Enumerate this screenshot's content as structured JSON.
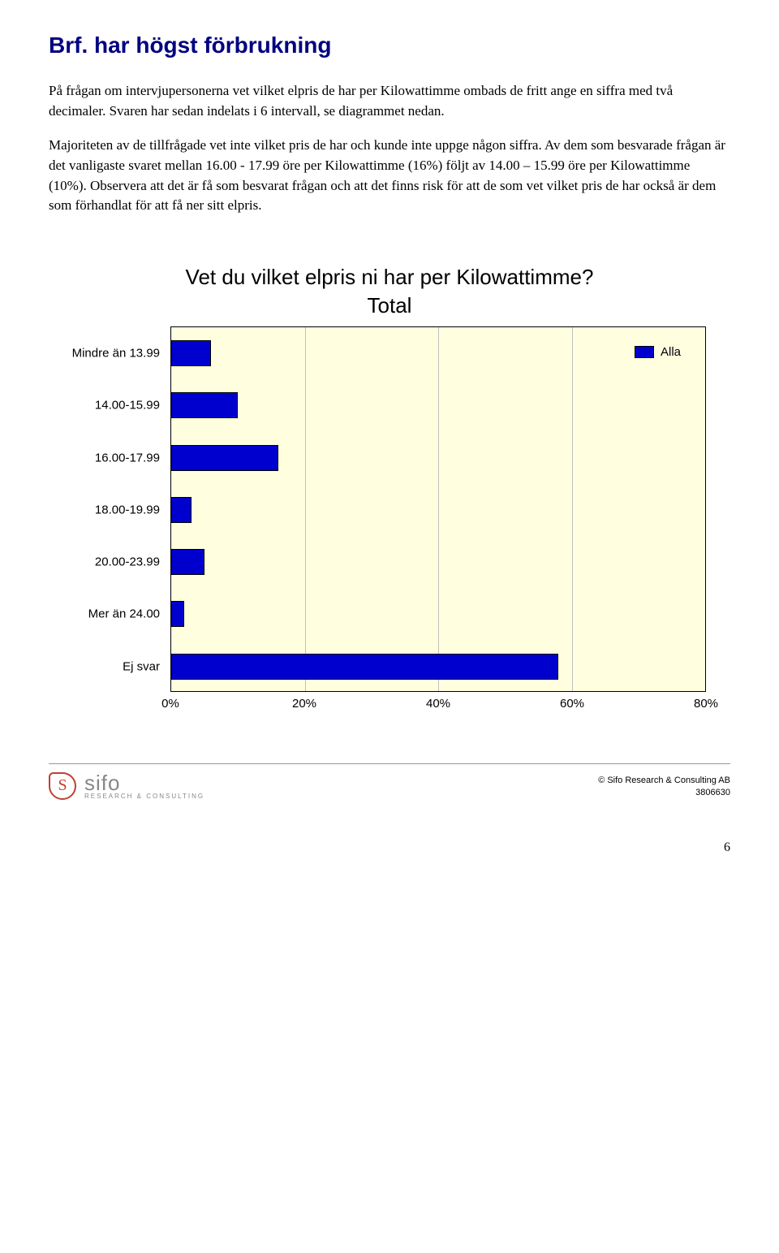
{
  "title": "Brf. har högst förbrukning",
  "paragraphs": [
    "På frågan om intervjupersonerna vet vilket elpris de har per Kilowattimme ombads de fritt ange en siffra med två decimaler. Svaren har sedan indelats i 6 intervall, se diagrammet nedan.",
    "Majoriteten av de tillfrågade vet inte vilket pris de har och kunde inte uppge någon siffra. Av dem som besvarade frågan är det vanligaste svaret mellan 16.00 - 17.99 öre per Kilowattimme (16%) följt av 14.00 – 15.99 öre per Kilowattimme (10%). Observera att det är få som besvarat frågan och att det finns risk för att de som vet vilket pris de har också är dem som förhandlat för att få ner sitt elpris."
  ],
  "chart": {
    "type": "bar-horizontal",
    "title": "Vet du vilket elpris ni har per Kilowattimme?",
    "subtitle": "Total",
    "categories": [
      "Mindre än 13.99",
      "14.00-15.99",
      "16.00-17.99",
      "18.00-19.99",
      "20.00-23.99",
      "Mer än 24.00",
      "Ej svar"
    ],
    "values": [
      6,
      10,
      16,
      3,
      5,
      2,
      58
    ],
    "xlim_max": 80,
    "xticks": [
      0,
      20,
      40,
      60,
      80
    ],
    "xtick_labels": [
      "0%",
      "20%",
      "40%",
      "60%",
      "80%"
    ],
    "bar_color": "#0000ce",
    "plot_bg": "#ffffe0",
    "grid_color": "#c0c0c0",
    "legend_label": "Alla",
    "label_fontsize": 15,
    "title_fontsize": 26
  },
  "footer": {
    "logo_letter": "S",
    "logo_main": "sifo",
    "logo_sub": "RESEARCH & CONSULTING",
    "copyright": "© Sifo Research & Consulting AB",
    "ref": "3806630"
  },
  "page_number": "6"
}
